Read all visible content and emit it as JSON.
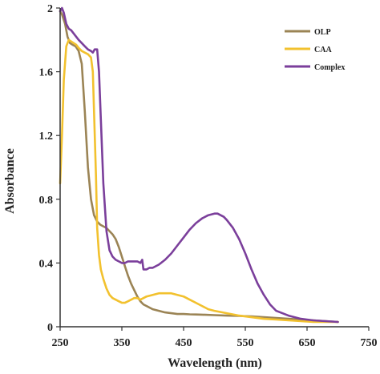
{
  "chart_data": {
    "type": "line",
    "title": "",
    "xlabel": "Wavelength (nm)",
    "ylabel": "Absorbance",
    "xlim": [
      250,
      750
    ],
    "ylim": [
      0,
      2
    ],
    "xticks": [
      250,
      350,
      450,
      550,
      650,
      750
    ],
    "yticks": [
      0,
      0.4,
      0.8,
      1.2,
      1.6,
      2
    ],
    "ytick_labels": [
      "0",
      "0.4",
      "0.8",
      "1.2",
      "1.6",
      "2"
    ],
    "grid": false,
    "legend_position": "top-right",
    "series": [
      {
        "name": "OLP",
        "color": "#9b8455",
        "x": [
          250,
          253,
          258,
          262,
          266,
          270,
          275,
          280,
          285,
          290,
          295,
          300,
          305,
          310,
          315,
          320,
          325,
          330,
          335,
          340,
          345,
          350,
          355,
          360,
          365,
          370,
          375,
          380,
          385,
          390,
          395,
          400,
          410,
          420,
          430,
          440,
          450,
          460,
          470,
          480,
          500,
          520,
          540,
          560,
          580,
          600,
          620,
          640,
          660,
          680,
          700
        ],
        "y": [
          1.98,
          1.96,
          1.9,
          1.82,
          1.78,
          1.77,
          1.76,
          1.73,
          1.65,
          1.35,
          1.0,
          0.8,
          0.7,
          0.66,
          0.64,
          0.63,
          0.62,
          0.6,
          0.58,
          0.55,
          0.5,
          0.44,
          0.38,
          0.32,
          0.27,
          0.23,
          0.19,
          0.16,
          0.14,
          0.13,
          0.12,
          0.11,
          0.1,
          0.09,
          0.085,
          0.08,
          0.08,
          0.078,
          0.077,
          0.076,
          0.073,
          0.07,
          0.068,
          0.065,
          0.06,
          0.055,
          0.05,
          0.045,
          0.04,
          0.035,
          0.03
        ]
      },
      {
        "name": "CAA",
        "color": "#f2c12e",
        "x": [
          250,
          253,
          256,
          260,
          264,
          268,
          272,
          276,
          280,
          285,
          290,
          295,
          300,
          303,
          305,
          308,
          310,
          313,
          316,
          320,
          325,
          330,
          335,
          340,
          345,
          350,
          355,
          360,
          365,
          370,
          375,
          380,
          385,
          390,
          400,
          410,
          420,
          430,
          440,
          450,
          460,
          470,
          480,
          490,
          500,
          520,
          540,
          560,
          580,
          600,
          620,
          640,
          660,
          680,
          700
        ],
        "y": [
          0.9,
          1.2,
          1.55,
          1.76,
          1.8,
          1.79,
          1.78,
          1.77,
          1.75,
          1.73,
          1.72,
          1.71,
          1.69,
          1.6,
          1.35,
          0.95,
          0.62,
          0.45,
          0.36,
          0.3,
          0.24,
          0.2,
          0.18,
          0.17,
          0.16,
          0.15,
          0.15,
          0.16,
          0.17,
          0.18,
          0.18,
          0.17,
          0.18,
          0.19,
          0.2,
          0.21,
          0.21,
          0.21,
          0.2,
          0.19,
          0.17,
          0.15,
          0.13,
          0.11,
          0.1,
          0.085,
          0.07,
          0.06,
          0.05,
          0.045,
          0.04,
          0.035,
          0.03,
          0.03,
          0.03
        ]
      },
      {
        "name": "Complex",
        "color": "#7b3f9b",
        "x": [
          250,
          253,
          256,
          260,
          264,
          268,
          272,
          276,
          280,
          285,
          290,
          295,
          300,
          303,
          306,
          310,
          313,
          316,
          320,
          325,
          330,
          335,
          340,
          345,
          350,
          355,
          360,
          365,
          370,
          375,
          380,
          383,
          385,
          390,
          395,
          400,
          410,
          420,
          430,
          440,
          450,
          460,
          470,
          480,
          490,
          500,
          505,
          510,
          515,
          520,
          530,
          540,
          550,
          560,
          570,
          580,
          590,
          600,
          620,
          640,
          660,
          680,
          700
        ],
        "y": [
          1.98,
          2.0,
          1.97,
          1.9,
          1.87,
          1.86,
          1.84,
          1.82,
          1.8,
          1.78,
          1.76,
          1.74,
          1.73,
          1.72,
          1.74,
          1.74,
          1.6,
          1.3,
          0.9,
          0.6,
          0.48,
          0.44,
          0.42,
          0.41,
          0.4,
          0.4,
          0.41,
          0.41,
          0.41,
          0.41,
          0.4,
          0.42,
          0.36,
          0.36,
          0.37,
          0.37,
          0.39,
          0.42,
          0.46,
          0.51,
          0.56,
          0.61,
          0.65,
          0.68,
          0.7,
          0.71,
          0.71,
          0.7,
          0.69,
          0.67,
          0.62,
          0.55,
          0.46,
          0.36,
          0.27,
          0.2,
          0.14,
          0.1,
          0.07,
          0.05,
          0.04,
          0.035,
          0.03
        ]
      }
    ]
  }
}
